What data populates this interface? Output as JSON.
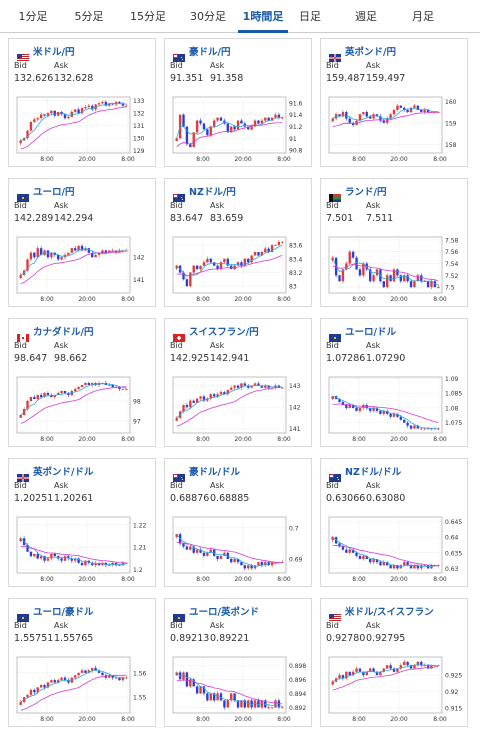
{
  "tabs": [
    {
      "label": "1分足",
      "active": false
    },
    {
      "label": "5分足",
      "active": false
    },
    {
      "label": "15分足",
      "active": false
    },
    {
      "label": "30分足",
      "active": false
    },
    {
      "label": "1時間足",
      "active": true
    },
    {
      "label": "日足",
      "active": false
    },
    {
      "label": "週足",
      "active": false
    },
    {
      "label": "月足",
      "active": false
    }
  ],
  "labels": {
    "bid": "Bid",
    "ask": "Ask"
  },
  "colors": {
    "up": "#e23b3b",
    "down": "#2b3fd6",
    "ma_short": "#2aa8e0",
    "ma_long": "#d63cd6",
    "link": "#1a5aa8"
  },
  "cards": [
    {
      "pair": "米ドル/円",
      "flag": "us",
      "bid": "132.626",
      "ask": "132.628",
      "yticks": [
        "133",
        "132",
        "131",
        "130",
        "129"
      ],
      "xticks": [
        "8:00",
        "20:00",
        "8:00"
      ],
      "chart_data": {
        "type": "candlestick",
        "yrange": [
          128.8,
          133.3
        ],
        "seed": 11,
        "closes": [
          129.8,
          130.0,
          130.6,
          131.3,
          131.5,
          131.6,
          131.9,
          131.8,
          132.0,
          132.2,
          131.8,
          132.1,
          131.9,
          131.6,
          131.7,
          132.1,
          132.3,
          132.0,
          132.4,
          132.5,
          132.6,
          132.3,
          132.7,
          132.8,
          132.9,
          132.6,
          132.8,
          132.7,
          132.9,
          132.8,
          132.6,
          132.6
        ]
      }
    },
    {
      "pair": "豪ドル/円",
      "flag": "au",
      "bid": "91.351",
      "ask": "91.358",
      "yticks": [
        "91.6",
        "91.4",
        "91.2",
        "91",
        "90.8"
      ],
      "xticks": [
        "8:00",
        "20:00",
        "8:00"
      ],
      "chart_data": {
        "type": "candlestick",
        "yrange": [
          90.75,
          91.7
        ],
        "seed": 22,
        "closes": [
          91.0,
          91.4,
          91.2,
          90.9,
          90.85,
          91.1,
          91.3,
          91.25,
          91.15,
          91.05,
          91.2,
          91.3,
          91.35,
          91.3,
          91.25,
          91.1,
          91.2,
          91.15,
          91.3,
          91.25,
          91.2,
          91.15,
          91.2,
          91.3,
          91.25,
          91.3,
          91.35,
          91.3,
          91.35,
          91.4,
          91.35,
          91.35
        ]
      }
    },
    {
      "pair": "英ポンド/円",
      "flag": "uk",
      "bid": "159.487",
      "ask": "159.497",
      "yticks": [
        "160",
        "159",
        "158"
      ],
      "xticks": [
        "8:00",
        "20:00",
        "8:00"
      ],
      "chart_data": {
        "type": "candlestick",
        "yrange": [
          157.6,
          160.2
        ],
        "seed": 33,
        "closes": [
          159.2,
          159.4,
          159.3,
          159.5,
          159.2,
          159.0,
          158.9,
          159.1,
          159.4,
          159.5,
          159.3,
          159.2,
          159.4,
          159.3,
          159.1,
          159.0,
          159.2,
          159.4,
          159.6,
          159.8,
          159.7,
          159.6,
          159.5,
          159.7,
          159.8,
          159.6,
          159.5,
          159.6,
          159.5,
          159.5,
          159.5,
          159.5
        ]
      }
    },
    {
      "pair": "ユーロ/円",
      "flag": "eu",
      "bid": "142.289",
      "ask": "142.294",
      "yticks": [
        "142",
        "141"
      ],
      "xticks": [
        "8:00",
        "20:00",
        "8:00"
      ],
      "chart_data": {
        "type": "candlestick",
        "yrange": [
          140.4,
          142.9
        ],
        "seed": 44,
        "closes": [
          141.2,
          141.4,
          141.9,
          142.2,
          142.0,
          142.4,
          142.1,
          142.3,
          142.0,
          142.2,
          142.1,
          141.9,
          142.0,
          142.1,
          142.2,
          142.4,
          142.3,
          142.5,
          142.3,
          142.4,
          142.2,
          142.0,
          142.1,
          142.2,
          142.3,
          142.2,
          142.3,
          142.3,
          142.2,
          142.3,
          142.3,
          142.3
        ]
      }
    },
    {
      "pair": "NZドル/円",
      "flag": "nz",
      "bid": "83.647",
      "ask": "83.659",
      "yticks": [
        "83.6",
        "83.4",
        "83.2",
        "83"
      ],
      "xticks": [
        "8:00",
        "20:00",
        "8:00"
      ],
      "chart_data": {
        "type": "candlestick",
        "yrange": [
          82.9,
          83.72
        ],
        "seed": 55,
        "closes": [
          83.3,
          83.2,
          83.1,
          83.0,
          83.2,
          83.3,
          83.25,
          83.3,
          83.35,
          83.4,
          83.35,
          83.3,
          83.25,
          83.35,
          83.4,
          83.3,
          83.25,
          83.3,
          83.35,
          83.3,
          83.4,
          83.35,
          83.45,
          83.5,
          83.45,
          83.5,
          83.55,
          83.5,
          83.6,
          83.6,
          83.65,
          83.65
        ]
      }
    },
    {
      "pair": "ランド/円",
      "flag": "za",
      "bid": "7.501",
      "ask": "7.511",
      "yticks": [
        "7.58",
        "7.56",
        "7.54",
        "7.52",
        "7.5"
      ],
      "xticks": [
        "8:00",
        "20:00",
        "8:00"
      ],
      "chart_data": {
        "type": "candlestick",
        "yrange": [
          7.49,
          7.585
        ],
        "seed": 66,
        "closes": [
          7.55,
          7.52,
          7.51,
          7.53,
          7.54,
          7.56,
          7.55,
          7.53,
          7.52,
          7.54,
          7.53,
          7.51,
          7.52,
          7.53,
          7.51,
          7.5,
          7.52,
          7.51,
          7.53,
          7.52,
          7.51,
          7.52,
          7.51,
          7.5,
          7.51,
          7.52,
          7.51,
          7.51,
          7.5,
          7.51,
          7.5,
          7.5
        ]
      }
    },
    {
      "pair": "カナダドル/円",
      "flag": "ca",
      "bid": "98.647",
      "ask": "98.662",
      "yticks": [
        "98",
        "97"
      ],
      "xticks": [
        "8:00",
        "20:00",
        "8:00"
      ],
      "chart_data": {
        "type": "candlestick",
        "yrange": [
          96.4,
          99.2
        ],
        "seed": 77,
        "closes": [
          97.3,
          97.6,
          98.0,
          98.2,
          98.1,
          98.3,
          98.2,
          98.4,
          98.3,
          98.2,
          98.3,
          98.4,
          98.5,
          98.4,
          98.3,
          98.5,
          98.6,
          98.7,
          98.8,
          98.9,
          98.8,
          98.9,
          98.8,
          98.9,
          98.9,
          98.8,
          98.8,
          98.7,
          98.7,
          98.6,
          98.6,
          98.6
        ]
      }
    },
    {
      "pair": "スイスフラン/円",
      "flag": "ch",
      "bid": "142.925",
      "ask": "142.941",
      "yticks": [
        "143",
        "142",
        "141"
      ],
      "xticks": [
        "8:00",
        "20:00",
        "8:00"
      ],
      "chart_data": {
        "type": "candlestick",
        "yrange": [
          140.8,
          143.4
        ],
        "seed": 88,
        "closes": [
          141.5,
          141.8,
          142.1,
          142.0,
          142.3,
          142.2,
          142.4,
          142.5,
          142.3,
          142.4,
          142.6,
          142.5,
          142.6,
          142.7,
          142.6,
          142.8,
          142.9,
          143.0,
          142.9,
          143.1,
          143.0,
          142.9,
          143.0,
          143.1,
          143.0,
          142.9,
          143.0,
          142.9,
          142.9,
          143.0,
          142.9,
          142.9
        ]
      }
    },
    {
      "pair": "ユーロ/ドル",
      "flag": "eu",
      "bid": "1.07286",
      "ask": "1.07290",
      "yticks": [
        "1.09",
        "1.085",
        "1.08",
        "1.075"
      ],
      "xticks": [
        "8:00",
        "20:00",
        "8:00"
      ],
      "chart_data": {
        "type": "candlestick",
        "yrange": [
          1.0715,
          1.0905
        ],
        "seed": 99,
        "closes": [
          1.084,
          1.083,
          1.082,
          1.081,
          1.08,
          1.081,
          1.08,
          1.079,
          1.08,
          1.081,
          1.08,
          1.079,
          1.08,
          1.079,
          1.078,
          1.079,
          1.078,
          1.077,
          1.078,
          1.077,
          1.076,
          1.075,
          1.074,
          1.073,
          1.074,
          1.073,
          1.073,
          1.073,
          1.073,
          1.073,
          1.073,
          1.073
        ]
      }
    },
    {
      "pair": "英ポンド/ドル",
      "flag": "uk",
      "bid": "1.20251",
      "ask": "1.20261",
      "yticks": [
        "1.22",
        "1.21",
        "1.2"
      ],
      "xticks": [
        "8:00",
        "20:00",
        "8:00"
      ],
      "chart_data": {
        "type": "candlestick",
        "yrange": [
          1.1985,
          1.2235
        ],
        "seed": 111,
        "closes": [
          1.214,
          1.211,
          1.208,
          1.206,
          1.207,
          1.205,
          1.206,
          1.204,
          1.205,
          1.207,
          1.206,
          1.205,
          1.204,
          1.206,
          1.205,
          1.204,
          1.205,
          1.203,
          1.202,
          1.204,
          1.203,
          1.202,
          1.203,
          1.202,
          1.203,
          1.202,
          1.202,
          1.203,
          1.202,
          1.202,
          1.203,
          1.203
        ]
      }
    },
    {
      "pair": "豪ドル/ドル",
      "flag": "au",
      "bid": "0.68876",
      "ask": "0.68885",
      "yticks": [
        "0.7",
        "0.69"
      ],
      "xticks": [
        "8:00",
        "20:00",
        "8:00"
      ],
      "chart_data": {
        "type": "candlestick",
        "yrange": [
          0.6855,
          0.7035
        ],
        "seed": 122,
        "closes": [
          0.698,
          0.695,
          0.694,
          0.693,
          0.694,
          0.692,
          0.693,
          0.692,
          0.691,
          0.692,
          0.693,
          0.691,
          0.69,
          0.691,
          0.692,
          0.69,
          0.689,
          0.69,
          0.689,
          0.688,
          0.687,
          0.688,
          0.687,
          0.688,
          0.689,
          0.688,
          0.689,
          0.688,
          0.689,
          0.689,
          0.689,
          0.689
        ]
      }
    },
    {
      "pair": "NZドル/ドル",
      "flag": "nz",
      "bid": "0.63066",
      "ask": "0.63080",
      "yticks": [
        "0.645",
        "0.64",
        "0.635",
        "0.63"
      ],
      "xticks": [
        "8:00",
        "20:00",
        "8:00"
      ],
      "chart_data": {
        "type": "candlestick",
        "yrange": [
          0.6285,
          0.6465
        ],
        "seed": 133,
        "closes": [
          0.64,
          0.638,
          0.637,
          0.636,
          0.635,
          0.636,
          0.635,
          0.634,
          0.633,
          0.634,
          0.633,
          0.632,
          0.633,
          0.632,
          0.631,
          0.632,
          0.631,
          0.63,
          0.631,
          0.63,
          0.631,
          0.632,
          0.631,
          0.63,
          0.631,
          0.63,
          0.631,
          0.631,
          0.63,
          0.631,
          0.631,
          0.631
        ]
      }
    },
    {
      "pair": "ユーロ/豪ドル",
      "flag": "eu",
      "bid": "1.55751",
      "ask": "1.55765",
      "yticks": [
        "1.56",
        "1.55"
      ],
      "xticks": [
        "8:00",
        "20:00",
        "8:00"
      ],
      "chart_data": {
        "type": "candlestick",
        "yrange": [
          1.5435,
          1.5665
        ],
        "seed": 144,
        "closes": [
          1.548,
          1.55,
          1.551,
          1.553,
          1.552,
          1.554,
          1.555,
          1.554,
          1.556,
          1.557,
          1.556,
          1.557,
          1.558,
          1.557,
          1.556,
          1.558,
          1.559,
          1.56,
          1.561,
          1.56,
          1.561,
          1.562,
          1.561,
          1.56,
          1.559,
          1.558,
          1.559,
          1.558,
          1.558,
          1.557,
          1.558,
          1.558
        ]
      }
    },
    {
      "pair": "ユーロ/英ポンド",
      "flag": "eu",
      "bid": "0.89213",
      "ask": "0.89221",
      "yticks": [
        "0.898",
        "0.896",
        "0.894",
        "0.892"
      ],
      "xticks": [
        "8:00",
        "20:00",
        "8:00"
      ],
      "chart_data": {
        "type": "candlestick",
        "yrange": [
          0.8912,
          0.8992
        ],
        "seed": 155,
        "closes": [
          0.897,
          0.896,
          0.897,
          0.895,
          0.896,
          0.895,
          0.894,
          0.895,
          0.894,
          0.893,
          0.894,
          0.893,
          0.894,
          0.893,
          0.892,
          0.893,
          0.894,
          0.893,
          0.892,
          0.893,
          0.892,
          0.893,
          0.892,
          0.893,
          0.892,
          0.893,
          0.892,
          0.892,
          0.892,
          0.893,
          0.892,
          0.892
        ]
      }
    },
    {
      "pair": "米ドル/スイスフラン",
      "flag": "us",
      "bid": "0.92780",
      "ask": "0.92795",
      "yticks": [
        "0.925",
        "0.92",
        "0.915"
      ],
      "xticks": [
        "8:00",
        "20:00",
        "8:00"
      ],
      "chart_data": {
        "type": "candlestick",
        "yrange": [
          0.9135,
          0.9305
        ],
        "seed": 166,
        "closes": [
          0.923,
          0.924,
          0.925,
          0.924,
          0.926,
          0.925,
          0.926,
          0.927,
          0.926,
          0.925,
          0.926,
          0.927,
          0.926,
          0.925,
          0.926,
          0.927,
          0.928,
          0.927,
          0.926,
          0.927,
          0.928,
          0.929,
          0.928,
          0.927,
          0.928,
          0.929,
          0.928,
          0.928,
          0.927,
          0.928,
          0.928,
          0.928
        ]
      }
    }
  ]
}
